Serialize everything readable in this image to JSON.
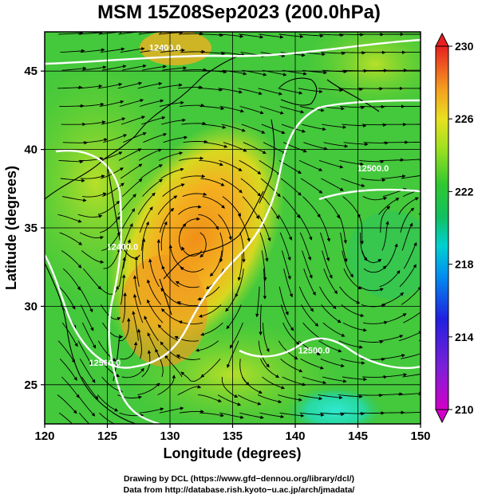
{
  "title": "MSM 15Z08Sep2023 (200.0hPa)",
  "map": {
    "x_axis": {
      "label": "Longitude (degrees)",
      "range": [
        120,
        150
      ],
      "ticks": [
        {
          "value": 120,
          "label": "120"
        },
        {
          "value": 125,
          "label": "125"
        },
        {
          "value": 130,
          "label": "130"
        },
        {
          "value": 135,
          "label": "135"
        },
        {
          "value": 140,
          "label": "140"
        },
        {
          "value": 145,
          "label": "145"
        },
        {
          "value": 150,
          "label": "150"
        }
      ]
    },
    "y_axis": {
      "label": "Latitude  (degrees)",
      "range": [
        22.5,
        47.5
      ],
      "ticks": [
        {
          "value": 25,
          "label": "25"
        },
        {
          "value": 30,
          "label": "30"
        },
        {
          "value": 35,
          "label": "35"
        },
        {
          "value": 40,
          "label": "40"
        },
        {
          "value": 45,
          "label": "45"
        }
      ]
    },
    "grid": true,
    "field": "temperature shading with wind streamlines and geopotential height contours",
    "contour_labels": [
      {
        "text": "12400.0",
        "lon": 129.6,
        "lat": 46.3
      },
      {
        "text": "12400.0",
        "lon": 126.2,
        "lat": 33.6
      },
      {
        "text": "12500.0",
        "lon": 146.2,
        "lat": 38.6
      },
      {
        "text": "12500.0",
        "lon": 124.8,
        "lat": 26.2
      },
      {
        "text": "12500.0",
        "lon": 141.5,
        "lat": 27.0
      }
    ],
    "colors": {
      "warm_core": "#f2a020",
      "background": "#3ec93e",
      "ocean_cyan": "#30e0c0"
    }
  },
  "colorbar": {
    "min": 210,
    "max": 230,
    "ticks": [
      {
        "value": 210,
        "label": "210"
      },
      {
        "value": 214,
        "label": "214"
      },
      {
        "value": 218,
        "label": "218"
      },
      {
        "value": 222,
        "label": "222"
      },
      {
        "value": 226,
        "label": "226"
      },
      {
        "value": 230,
        "label": "230"
      }
    ]
  },
  "credits": {
    "line1": "Drawing by DCL (https://www.gfd−dennou.org/library/dcl/)",
    "line2": "Data from http://database.rish.kyoto−u.ac.jp/arch/jmadata/"
  }
}
